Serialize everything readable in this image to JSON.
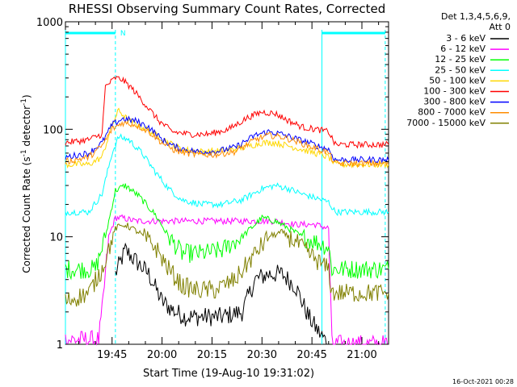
{
  "chart_data": {
    "type": "line",
    "title": "RHESSI Observing Summary Count Rates, Corrected",
    "xlabel": "Start Time (19-Aug-10 19:31:02)",
    "ylabel": "Corrected Count Rate (s",
    "ylabel_sup1": "-1",
    "ylabel_mid": " detector",
    "ylabel_sup2": "-1",
    "ylabel_end": ")",
    "y_scale": "log",
    "ylim": [
      1,
      1000
    ],
    "y_ticks": [
      1,
      10,
      100,
      1000
    ],
    "y_tick_labels": [
      "1",
      "10",
      "100",
      "1000"
    ],
    "xlim": [
      "19:31",
      "21:08"
    ],
    "x_ticks": [
      "19:45",
      "20:00",
      "20:15",
      "20:30",
      "20:45",
      "21:00"
    ],
    "legend_header_line1": "Det 1,3,4,5,6,9,",
    "legend_header_line2": "Att 0",
    "legend_position": "right",
    "footer_timestamp": "16-Oct-2021 00:28",
    "night_band_label": "N",
    "night_band_color": "#00ffff",
    "markers": {
      "night_intervals": [
        [
          "19:31",
          "19:46"
        ],
        [
          "20:48",
          "21:07"
        ]
      ],
      "dashed_lines": [
        "19:46",
        "21:07"
      ],
      "solid_lines": [
        "19:31",
        "20:48"
      ]
    },
    "series": [
      {
        "name": "3 - 6 keV",
        "color": "#000000",
        "x": [
          "19:46",
          "19:49",
          "19:52",
          "19:56",
          "20:00",
          "20:04",
          "20:07",
          "20:12",
          "20:18",
          "20:24",
          "20:28",
          "20:32",
          "20:36",
          "20:40",
          "20:44",
          "20:47",
          "20:50"
        ],
        "values": [
          4.5,
          7.5,
          6,
          4.5,
          2.5,
          2,
          1.8,
          1.8,
          1.8,
          2,
          4,
          4.5,
          4.5,
          3.5,
          1.8,
          1.3,
          1
        ]
      },
      {
        "name": "6 - 12 keV",
        "color": "#ff00ff",
        "x": [
          "19:31",
          "19:41",
          "19:42",
          "19:44",
          "19:46",
          "19:48",
          "19:52",
          "19:58",
          "20:04",
          "20:12",
          "20:20",
          "20:28",
          "20:34",
          "20:40",
          "20:46",
          "20:50",
          "20:51",
          "21:08"
        ],
        "values": [
          1.1,
          1.1,
          2,
          10,
          15,
          15,
          14,
          14,
          14,
          14,
          14,
          14,
          14,
          13,
          13,
          12,
          1,
          1
        ]
      },
      {
        "name": "12 - 25 keV",
        "color": "#00ff00",
        "x": [
          "19:31",
          "19:40",
          "19:43",
          "19:46",
          "19:49",
          "19:53",
          "19:58",
          "20:02",
          "20:06",
          "20:12",
          "20:18",
          "20:24",
          "20:30",
          "20:34",
          "20:38",
          "20:42",
          "20:46",
          "20:50",
          "20:51",
          "21:08"
        ],
        "values": [
          5,
          5,
          10,
          27,
          30,
          24,
          16,
          10,
          7,
          7,
          7.5,
          10,
          15,
          14,
          12,
          10,
          9,
          8,
          5,
          5
        ]
      },
      {
        "name": "25 - 50 keV",
        "color": "#00ffff",
        "x": [
          "19:31",
          "19:38",
          "19:42",
          "19:45",
          "19:47",
          "19:50",
          "19:54",
          "19:58",
          "20:02",
          "20:06",
          "20:12",
          "20:18",
          "20:24",
          "20:30",
          "20:34",
          "20:38",
          "20:42",
          "20:46",
          "20:50",
          "20:52",
          "21:08"
        ],
        "values": [
          17,
          17,
          25,
          60,
          85,
          80,
          60,
          40,
          28,
          22,
          20,
          20,
          22,
          28,
          30,
          28,
          25,
          23,
          21,
          17,
          17
        ]
      },
      {
        "name": "50 - 100 keV",
        "color": "#ffd700",
        "x": [
          "19:31",
          "19:38",
          "19:42",
          "19:45",
          "19:47",
          "19:50",
          "19:54",
          "19:58",
          "20:02",
          "20:06",
          "20:12",
          "20:18",
          "20:24",
          "20:30",
          "20:34",
          "20:38",
          "20:42",
          "20:46",
          "20:50",
          "20:52",
          "21:08"
        ],
        "values": [
          47,
          47,
          55,
          110,
          150,
          120,
          105,
          90,
          75,
          65,
          62,
          63,
          67,
          75,
          75,
          70,
          65,
          60,
          55,
          47,
          47
        ]
      },
      {
        "name": "100 - 300 keV",
        "color": "#ff0000",
        "x": [
          "19:31",
          "19:38",
          "19:42",
          "19:43",
          "19:46",
          "19:48",
          "19:51",
          "19:55",
          "19:59",
          "20:03",
          "20:08",
          "20:14",
          "20:20",
          "20:26",
          "20:30",
          "20:34",
          "20:38",
          "20:42",
          "20:46",
          "20:50",
          "20:52",
          "21:08"
        ],
        "values": [
          75,
          80,
          90,
          250,
          300,
          290,
          240,
          170,
          120,
          95,
          90,
          90,
          100,
          130,
          145,
          140,
          120,
          105,
          100,
          95,
          72,
          72
        ]
      },
      {
        "name": "300 - 800 keV",
        "color": "#0000ff",
        "x": [
          "19:31",
          "19:38",
          "19:42",
          "19:45",
          "19:48",
          "19:52",
          "19:56",
          "20:00",
          "20:04",
          "20:10",
          "20:16",
          "20:22",
          "20:28",
          "20:32",
          "20:36",
          "20:40",
          "20:44",
          "20:48",
          "20:50",
          "20:52",
          "21:08"
        ],
        "values": [
          55,
          60,
          75,
          110,
          125,
          120,
          105,
          80,
          68,
          62,
          62,
          68,
          88,
          95,
          90,
          82,
          75,
          68,
          65,
          52,
          52
        ]
      },
      {
        "name": "800 - 7000 keV",
        "color": "#ff8c00",
        "x": [
          "19:31",
          "19:38",
          "19:42",
          "19:45",
          "19:48",
          "19:52",
          "19:56",
          "20:00",
          "20:04",
          "20:10",
          "20:16",
          "20:22",
          "20:28",
          "20:32",
          "20:36",
          "20:40",
          "20:44",
          "20:48",
          "20:50",
          "20:52",
          "21:08"
        ],
        "values": [
          50,
          55,
          70,
          100,
          115,
          110,
          95,
          75,
          63,
          58,
          58,
          62,
          80,
          88,
          85,
          78,
          70,
          64,
          60,
          48,
          48
        ]
      },
      {
        "name": "7000 - 15000 keV",
        "color": "#808000",
        "x": [
          "19:31",
          "19:38",
          "19:42",
          "19:46",
          "19:49",
          "19:53",
          "19:58",
          "20:02",
          "20:06",
          "20:10",
          "20:16",
          "20:22",
          "20:28",
          "20:32",
          "20:36",
          "20:40",
          "20:44",
          "20:48",
          "20:50",
          "20:51",
          "21:08"
        ],
        "values": [
          2.5,
          3,
          5,
          12,
          13,
          11,
          8,
          5,
          3.5,
          3.2,
          3.2,
          4,
          7,
          10,
          11,
          9,
          7,
          5.5,
          5,
          3,
          3
        ]
      }
    ]
  }
}
